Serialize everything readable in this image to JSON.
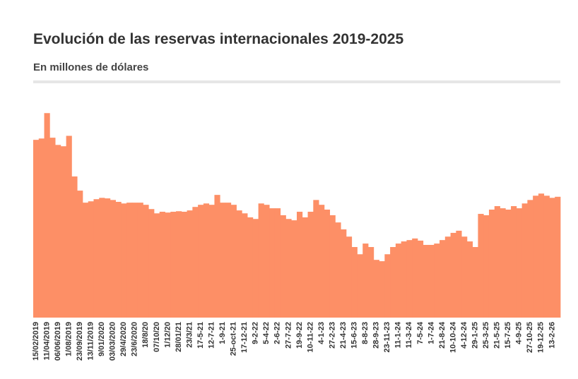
{
  "chart_data": {
    "type": "bar",
    "title": "Evolución de las reservas internacionales 2019-2025",
    "subtitle": "En millones de dólares",
    "color": "#fd8f66",
    "ylim": [
      0,
      80000
    ],
    "categories": [
      "15/02/2019",
      null,
      "11/04/2019",
      null,
      "06/06/2019",
      null,
      "1/08/2019",
      null,
      "23/09/2019",
      null,
      "13/11/2019",
      null,
      "9/01/2020",
      null,
      "03/03/2020",
      null,
      "29/4/2020",
      null,
      "23/6/2020",
      null,
      "18/8/20",
      null,
      "07/10/20",
      null,
      "1/12/20",
      null,
      "28/01/21",
      null,
      "23/3/21",
      null,
      "17-5-21",
      null,
      "12-7-21",
      null,
      "1-9-21",
      null,
      "25-oct-21",
      null,
      "17-12-21",
      null,
      "9-2-22",
      null,
      "5-4-22",
      null,
      "2-6-22",
      null,
      "27-7-22",
      null,
      "19-9-22",
      null,
      "10-11-22",
      null,
      "4-1-23",
      null,
      "27-2-23",
      null,
      "21-4-23",
      null,
      "15-6-23",
      null,
      "8-8-23",
      null,
      "28-9-23",
      null,
      "23-11-23",
      null,
      "11-1-24",
      null,
      "11-3-24",
      null,
      "7-5-24",
      null,
      "1-7-24",
      null,
      "21-8-24",
      null,
      "10-10-24",
      null,
      "4-12-24",
      null,
      "29-1-25",
      null,
      "25-3-25",
      null,
      "21-5-25",
      null,
      "15-7-25",
      null,
      "4-9-25",
      null,
      "27-10-25",
      null,
      "19-12-25",
      null,
      "13-2-26",
      null
    ],
    "values": [
      66500,
      67000,
      76500,
      67300,
      64600,
      64100,
      68000,
      52800,
      47500,
      43000,
      43500,
      44300,
      44800,
      44600,
      44000,
      43300,
      42700,
      43000,
      43000,
      43000,
      42200,
      40600,
      39000,
      39600,
      39300,
      39600,
      39800,
      39600,
      40100,
      41400,
      42200,
      42700,
      42200,
      45900,
      43000,
      43000,
      42200,
      40100,
      39000,
      37500,
      36900,
      42700,
      42200,
      40900,
      40900,
      38300,
      36900,
      36400,
      39600,
      37500,
      39600,
      44000,
      42200,
      40400,
      38300,
      35600,
      33000,
      30300,
      26400,
      23700,
      27700,
      26400,
      21600,
      21100,
      23700,
      26400,
      27700,
      28500,
      29000,
      29600,
      28800,
      27200,
      27200,
      27700,
      29000,
      30300,
      31700,
      32500,
      30300,
      28500,
      26400,
      38800,
      38300,
      40400,
      41700,
      40900,
      40400,
      41700,
      40900,
      42700,
      44000,
      45600,
      46400,
      45600,
      44800,
      45200
    ]
  }
}
